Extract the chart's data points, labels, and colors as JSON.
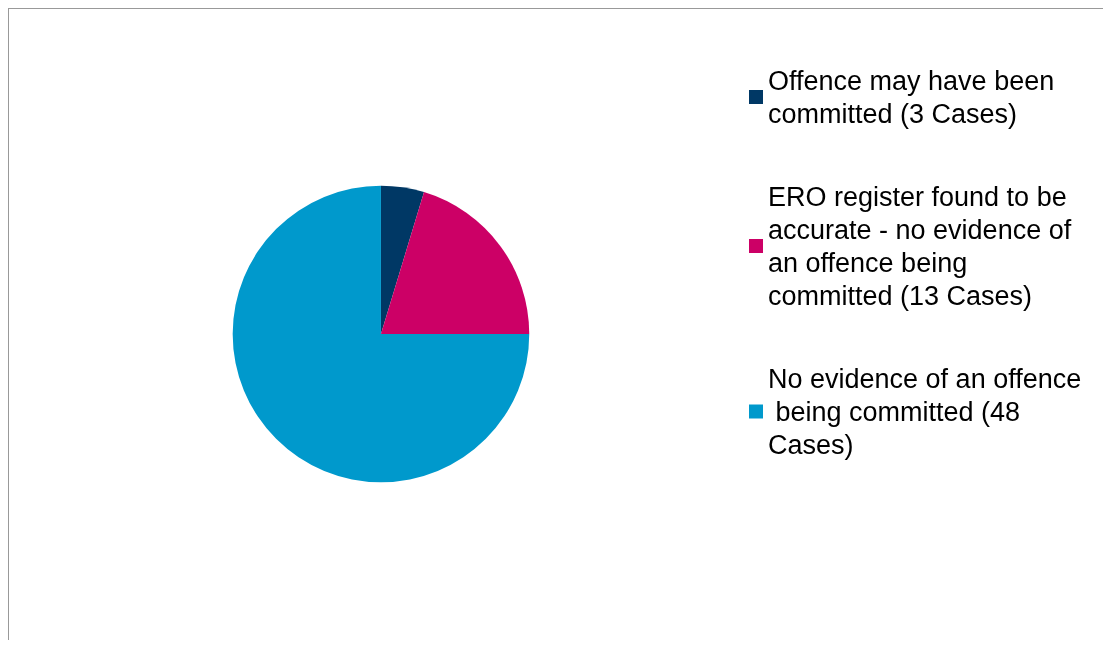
{
  "chart_data": {
    "type": "pie",
    "categories": [
      "Offence may have been committed (3 Cases)",
      "ERO register found to be accurate - no evidence of an offence being committed (13 Cases)",
      "No evidence of an offence being committed (48 Cases)"
    ],
    "values": [
      3,
      13,
      48
    ],
    "colors": [
      "#003865",
      "#cc0066",
      "#0099cc"
    ],
    "legend": "right"
  }
}
